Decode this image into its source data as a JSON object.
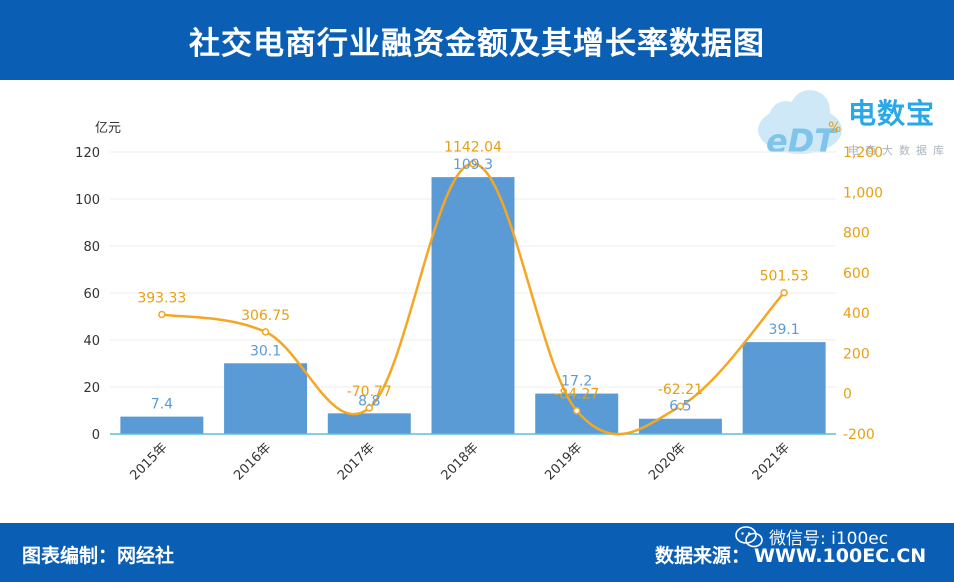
{
  "header": {
    "title": "社交电商行业融资金额及其增长率数据图"
  },
  "footer": {
    "compiled_by": "图表编制：网经社",
    "source_label": "数据来源：",
    "source_url": "WWW.100EC.CN",
    "wechat": "微信号: i100ec"
  },
  "logo": {
    "title": "电数宝",
    "subtitle": "电商大数据库"
  },
  "colors": {
    "bar": "#5b9bd5",
    "line": "#f5a623",
    "header": "#0a5fb4",
    "axis": "#5bc0d9"
  },
  "chart_data": {
    "type": "bar",
    "categories": [
      "2015年",
      "2016年",
      "2017年",
      "2018年",
      "2019年",
      "2020年",
      "2021年"
    ],
    "series": [
      {
        "values": [
          7.4,
          30.1,
          8.8,
          109.3,
          17.2,
          6.5,
          39.1
        ],
        "axis": "left",
        "kind": "bar"
      },
      {
        "values": [
          393.33,
          306.75,
          -70.77,
          1142.04,
          -84.27,
          -62.21,
          501.53
        ],
        "axis": "right",
        "kind": "line"
      }
    ],
    "bar_labels": [
      "7.4",
      "30.1",
      "8.8",
      "109.3",
      "17.2",
      "6.5",
      "39.1"
    ],
    "line_labels": [
      "393.33",
      "306.75",
      "-70.77",
      "1142.04",
      "-84.27",
      "-62.21",
      "501.53"
    ],
    "ylabel_left": "亿元",
    "ylabel_right": "%",
    "ylim_left": [
      0,
      120
    ],
    "ylim_right": [
      -200,
      1200
    ],
    "left_ticks": [
      "0",
      "20",
      "40",
      "60",
      "80",
      "100",
      "120"
    ],
    "right_ticks": [
      "-200",
      "0",
      "200",
      "400",
      "600",
      "800",
      "1,000",
      "1,200"
    ],
    "grid": true,
    "legend": "none"
  }
}
